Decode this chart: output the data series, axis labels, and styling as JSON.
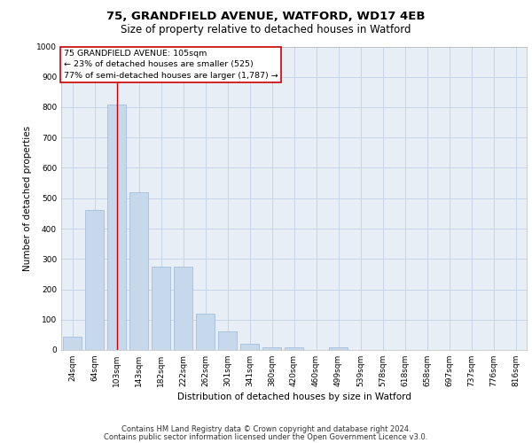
{
  "title_line1": "75, GRANDFIELD AVENUE, WATFORD, WD17 4EB",
  "title_line2": "Size of property relative to detached houses in Watford",
  "xlabel": "Distribution of detached houses by size in Watford",
  "ylabel": "Number of detached properties",
  "categories": [
    "24sqm",
    "64sqm",
    "103sqm",
    "143sqm",
    "182sqm",
    "222sqm",
    "262sqm",
    "301sqm",
    "341sqm",
    "380sqm",
    "420sqm",
    "460sqm",
    "499sqm",
    "539sqm",
    "578sqm",
    "618sqm",
    "658sqm",
    "697sqm",
    "737sqm",
    "776sqm",
    "816sqm"
  ],
  "values": [
    45,
    460,
    810,
    520,
    275,
    275,
    120,
    60,
    20,
    10,
    10,
    0,
    10,
    0,
    0,
    0,
    0,
    0,
    0,
    0,
    0
  ],
  "bar_color": "#c5d8ec",
  "bar_edge_color": "#9ab8d8",
  "vline_color": "#cc0000",
  "vline_index": 2,
  "annotation_text": "75 GRANDFIELD AVENUE: 105sqm\n← 23% of detached houses are smaller (525)\n77% of semi-detached houses are larger (1,787) →",
  "annotation_box_facecolor": "#ffffff",
  "annotation_box_edgecolor": "#cc0000",
  "ylim": [
    0,
    1000
  ],
  "yticks": [
    0,
    100,
    200,
    300,
    400,
    500,
    600,
    700,
    800,
    900,
    1000
  ],
  "grid_color": "#c8d4e8",
  "plot_bg_color": "#e8eef6",
  "title_fontsize": 9.5,
  "subtitle_fontsize": 8.5,
  "axis_label_fontsize": 7.5,
  "tick_fontsize": 6.5,
  "annotation_fontsize": 6.8,
  "footer_fontsize": 6.0,
  "footer_line1": "Contains HM Land Registry data © Crown copyright and database right 2024.",
  "footer_line2": "Contains public sector information licensed under the Open Government Licence v3.0."
}
